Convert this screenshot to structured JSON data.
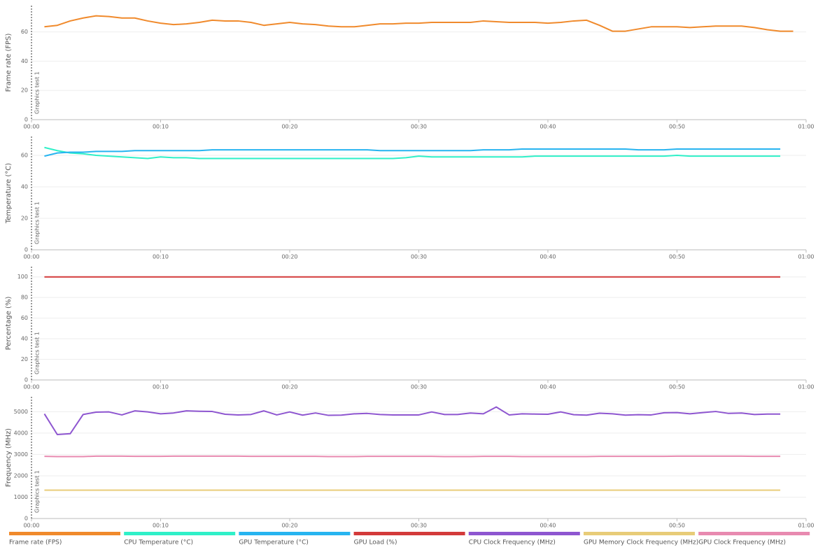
{
  "chart_data": [
    {
      "type": "line",
      "ylabel": "Frame rate (FPS)",
      "xlim": [
        0,
        60
      ],
      "ylim": [
        0,
        78
      ],
      "yticks": [
        0,
        20,
        40,
        60
      ],
      "xticks": [
        {
          "value": 0,
          "label": "00:00"
        },
        {
          "value": 10,
          "label": "00:10"
        },
        {
          "value": 20,
          "label": "00:20"
        },
        {
          "value": 30,
          "label": "00:30"
        },
        {
          "value": 40,
          "label": "00:40"
        },
        {
          "value": 50,
          "label": "00:50"
        },
        {
          "value": 60,
          "label": "01:00"
        }
      ],
      "grid": true,
      "annotations": [
        {
          "x": 0,
          "text": "Graphics test 1"
        }
      ],
      "x": [
        1,
        2,
        3,
        4,
        5,
        6,
        7,
        8,
        9,
        10,
        11,
        12,
        13,
        14,
        15,
        16,
        17,
        18,
        19,
        20,
        21,
        22,
        23,
        24,
        25,
        26,
        27,
        28,
        29,
        30,
        31,
        32,
        33,
        34,
        35,
        36,
        37,
        38,
        39,
        40,
        41,
        42,
        43,
        44,
        45,
        46,
        47,
        48,
        49,
        50,
        51,
        52,
        53,
        54,
        55,
        56,
        57,
        58,
        59
      ],
      "series": [
        {
          "name": "Frame rate (FPS)",
          "color": "#f08a2c",
          "values": [
            63.5,
            64.5,
            67.5,
            69.5,
            71,
            70.5,
            69.5,
            69.5,
            67.5,
            66,
            65,
            65.5,
            66.5,
            68,
            67.5,
            67.5,
            66.5,
            64.5,
            65.5,
            66.5,
            65.5,
            65,
            64,
            63.5,
            63.5,
            64.5,
            65.5,
            65.5,
            66,
            66,
            66.5,
            66.5,
            66.5,
            66.5,
            67.5,
            67,
            66.5,
            66.5,
            66.5,
            66,
            66.5,
            67.5,
            68,
            64.5,
            60.5,
            60.5,
            62,
            63.5,
            63.5,
            63.5,
            63,
            63.5,
            64,
            64,
            64,
            63,
            61.5,
            60.5,
            60.5
          ]
        }
      ]
    },
    {
      "type": "line",
      "ylabel": "Temperature (°C)",
      "xlim": [
        0,
        60
      ],
      "ylim": [
        0,
        72
      ],
      "yticks": [
        0,
        20,
        40,
        60
      ],
      "xticks": [
        {
          "value": 0,
          "label": "00:00"
        },
        {
          "value": 10,
          "label": "00:10"
        },
        {
          "value": 20,
          "label": "00:20"
        },
        {
          "value": 30,
          "label": "00:30"
        },
        {
          "value": 40,
          "label": "00:40"
        },
        {
          "value": 50,
          "label": "00:50"
        },
        {
          "value": 60,
          "label": "01:00"
        }
      ],
      "grid": true,
      "annotations": [
        {
          "x": 0,
          "text": "Graphics test 1"
        }
      ],
      "x": [
        1,
        2,
        3,
        4,
        5,
        6,
        7,
        8,
        9,
        10,
        11,
        12,
        13,
        14,
        15,
        16,
        17,
        18,
        19,
        20,
        21,
        22,
        23,
        24,
        25,
        26,
        27,
        28,
        29,
        30,
        31,
        32,
        33,
        34,
        35,
        36,
        37,
        38,
        39,
        40,
        41,
        42,
        43,
        44,
        45,
        46,
        47,
        48,
        49,
        50,
        51,
        52,
        53,
        54,
        55,
        56,
        57,
        58
      ],
      "series": [
        {
          "name": "CPU Temperature (°C)",
          "color": "#2ff0c8",
          "values": [
            65,
            63,
            61.5,
            61,
            60,
            59.5,
            59,
            58.5,
            58,
            59,
            58.5,
            58.5,
            58,
            58,
            58,
            58,
            58,
            58,
            58,
            58,
            58,
            58,
            58,
            58,
            58,
            58,
            58,
            58,
            58.5,
            59.5,
            59,
            59,
            59,
            59,
            59,
            59,
            59,
            59,
            59.5,
            59.5,
            59.5,
            59.5,
            59.5,
            59.5,
            59.5,
            59.5,
            59.5,
            59.5,
            59.5,
            60,
            59.5,
            59.5,
            59.5,
            59.5,
            59.5,
            59.5,
            59.5,
            59.5
          ]
        },
        {
          "name": "GPU Temperature (°C)",
          "color": "#27b4f0",
          "values": [
            59.5,
            61.5,
            62,
            62,
            62.5,
            62.5,
            62.5,
            63,
            63,
            63,
            63,
            63,
            63,
            63.5,
            63.5,
            63.5,
            63.5,
            63.5,
            63.5,
            63.5,
            63.5,
            63.5,
            63.5,
            63.5,
            63.5,
            63.5,
            63,
            63,
            63,
            63,
            63,
            63,
            63,
            63,
            63.5,
            63.5,
            63.5,
            64,
            64,
            64,
            64,
            64,
            64,
            64,
            64,
            64,
            63.5,
            63.5,
            63.5,
            64,
            64,
            64,
            64,
            64,
            64,
            64,
            64,
            64
          ]
        }
      ]
    },
    {
      "type": "line",
      "ylabel": "Percentage (%)",
      "xlim": [
        0,
        60
      ],
      "ylim": [
        0,
        110
      ],
      "yticks": [
        0,
        20,
        40,
        60,
        80,
        100
      ],
      "xticks": [
        {
          "value": 0,
          "label": "00:00"
        },
        {
          "value": 10,
          "label": "00:10"
        },
        {
          "value": 20,
          "label": "00:20"
        },
        {
          "value": 30,
          "label": "00:30"
        },
        {
          "value": 40,
          "label": "00:40"
        },
        {
          "value": 50,
          "label": "00:50"
        },
        {
          "value": 60,
          "label": "01:00"
        }
      ],
      "grid": true,
      "annotations": [
        {
          "x": 0,
          "text": "Graphics test 1"
        }
      ],
      "x": [
        1,
        2,
        3,
        4,
        5,
        6,
        7,
        8,
        9,
        10,
        11,
        12,
        13,
        14,
        15,
        16,
        17,
        18,
        19,
        20,
        21,
        22,
        23,
        24,
        25,
        26,
        27,
        28,
        29,
        30,
        31,
        32,
        33,
        34,
        35,
        36,
        37,
        38,
        39,
        40,
        41,
        42,
        43,
        44,
        45,
        46,
        47,
        48,
        49,
        50,
        51,
        52,
        53,
        54,
        55,
        56,
        57,
        58
      ],
      "series": [
        {
          "name": "GPU Load (%)",
          "color": "#d33a3a",
          "values": [
            100,
            100,
            100,
            100,
            100,
            100,
            100,
            100,
            100,
            100,
            100,
            100,
            100,
            100,
            100,
            100,
            100,
            100,
            100,
            100,
            100,
            100,
            100,
            100,
            100,
            100,
            100,
            100,
            100,
            100,
            100,
            100,
            100,
            100,
            100,
            100,
            100,
            100,
            100,
            100,
            100,
            100,
            100,
            100,
            100,
            100,
            100,
            100,
            100,
            100,
            100,
            100,
            100,
            100,
            100,
            100,
            100,
            100
          ]
        }
      ]
    },
    {
      "type": "line",
      "ylabel": "Frequency (MHz)",
      "xlim": [
        0,
        60
      ],
      "ylim": [
        0,
        5700
      ],
      "yticks": [
        0,
        1000,
        2000,
        3000,
        4000,
        5000
      ],
      "xticks": [
        {
          "value": 0,
          "label": "00:00"
        },
        {
          "value": 10,
          "label": "00:10"
        },
        {
          "value": 20,
          "label": "00:20"
        },
        {
          "value": 30,
          "label": "00:30"
        },
        {
          "value": 40,
          "label": "00:40"
        },
        {
          "value": 50,
          "label": "00:50"
        },
        {
          "value": 60,
          "label": "01:00"
        }
      ],
      "grid": true,
      "annotations": [
        {
          "x": 0,
          "text": "Graphics test 1"
        }
      ],
      "x": [
        1,
        2,
        3,
        4,
        5,
        6,
        7,
        8,
        9,
        10,
        11,
        12,
        13,
        14,
        15,
        16,
        17,
        18,
        19,
        20,
        21,
        22,
        23,
        24,
        25,
        26,
        27,
        28,
        29,
        30,
        31,
        32,
        33,
        34,
        35,
        36,
        37,
        38,
        39,
        40,
        41,
        42,
        43,
        44,
        45,
        46,
        47,
        48,
        49,
        50,
        51,
        52,
        53,
        54,
        55,
        56,
        57,
        58
      ],
      "series": [
        {
          "name": "CPU Clock Frequency (MHz)",
          "color": "#8e56d0",
          "values": [
            4900,
            3930,
            3970,
            4870,
            4980,
            4990,
            4850,
            5040,
            4990,
            4900,
            4940,
            5040,
            5020,
            5010,
            4880,
            4850,
            4870,
            5040,
            4850,
            4990,
            4840,
            4940,
            4830,
            4840,
            4900,
            4920,
            4870,
            4850,
            4850,
            4850,
            4990,
            4870,
            4870,
            4940,
            4900,
            5220,
            4850,
            4900,
            4890,
            4880,
            4990,
            4860,
            4840,
            4930,
            4900,
            4840,
            4860,
            4850,
            4950,
            4960,
            4900,
            4960,
            5010,
            4920,
            4940,
            4870,
            4890,
            4890
          ]
        },
        {
          "name": "GPU Memory Clock Frequency (MHz)",
          "color": "#e8cc78",
          "values": [
            1325,
            1325,
            1325,
            1325,
            1325,
            1325,
            1325,
            1325,
            1325,
            1325,
            1325,
            1325,
            1325,
            1325,
            1325,
            1325,
            1325,
            1325,
            1325,
            1325,
            1325,
            1325,
            1325,
            1325,
            1325,
            1325,
            1325,
            1325,
            1325,
            1325,
            1325,
            1325,
            1325,
            1325,
            1325,
            1325,
            1325,
            1325,
            1325,
            1325,
            1325,
            1325,
            1325,
            1325,
            1325,
            1325,
            1325,
            1325,
            1325,
            1325,
            1325,
            1325,
            1325,
            1325,
            1325,
            1325,
            1325,
            1325
          ]
        },
        {
          "name": "GPU Clock Frequency (MHz)",
          "color": "#e88ab0",
          "values": [
            2910,
            2900,
            2900,
            2900,
            2920,
            2920,
            2920,
            2910,
            2910,
            2910,
            2920,
            2920,
            2920,
            2920,
            2920,
            2920,
            2910,
            2910,
            2910,
            2910,
            2910,
            2910,
            2900,
            2900,
            2900,
            2910,
            2910,
            2910,
            2910,
            2910,
            2910,
            2900,
            2900,
            2900,
            2910,
            2910,
            2910,
            2900,
            2900,
            2900,
            2900,
            2900,
            2900,
            2910,
            2910,
            2910,
            2910,
            2910,
            2910,
            2920,
            2920,
            2920,
            2920,
            2920,
            2920,
            2910,
            2910,
            2910
          ]
        }
      ]
    }
  ]
}
